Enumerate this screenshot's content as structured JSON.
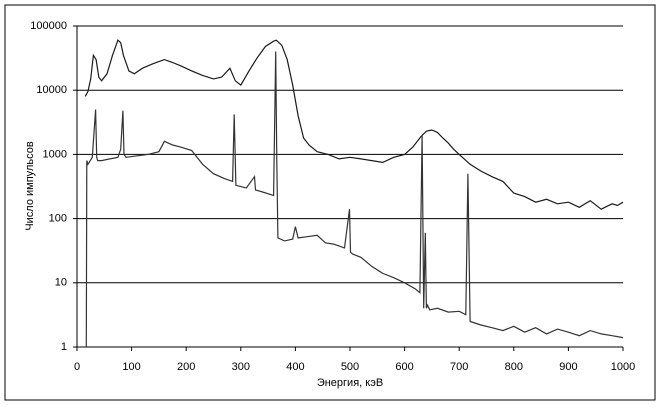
{
  "chart_data": {
    "type": "line",
    "y_label": "Число импульсов",
    "x_label": "Энергия, кэВ",
    "xlim": [
      0,
      1000
    ],
    "xticks": [
      0,
      100,
      200,
      300,
      400,
      500,
      600,
      700,
      800,
      900,
      1000
    ],
    "ylim": [
      1,
      100000
    ],
    "yticks": [
      1,
      10,
      100,
      1000,
      10000,
      100000
    ],
    "log_y": true,
    "grid": true,
    "series": [
      {
        "color": "#1a1a1a",
        "x": [
          15,
          20,
          25,
          30,
          35,
          40,
          45,
          55,
          65,
          75,
          80,
          85,
          95,
          105,
          120,
          140,
          160,
          175,
          190,
          210,
          230,
          250,
          265,
          280,
          290,
          300,
          315,
          330,
          345,
          360,
          365,
          375,
          385,
          395,
          405,
          415,
          425,
          440,
          460,
          480,
          500,
          520,
          540,
          560,
          580,
          600,
          615,
          630,
          640,
          650,
          660,
          670,
          680,
          690,
          700,
          720,
          740,
          760,
          780,
          800,
          820,
          840,
          860,
          880,
          900,
          920,
          940,
          960,
          980,
          990,
          1000
        ],
        "values": [
          8000,
          9500,
          15000,
          35000,
          30000,
          16000,
          14000,
          18000,
          35000,
          60000,
          55000,
          35000,
          20000,
          18000,
          22000,
          26000,
          30000,
          27000,
          24000,
          20000,
          17000,
          15000,
          16000,
          22000,
          14000,
          12000,
          20000,
          32000,
          48000,
          58000,
          60000,
          50000,
          30000,
          12000,
          4000,
          1800,
          1400,
          1100,
          1000,
          850,
          900,
          850,
          800,
          750,
          900,
          1000,
          1300,
          1900,
          2300,
          2400,
          2200,
          1800,
          1500,
          1200,
          1000,
          700,
          550,
          450,
          380,
          250,
          220,
          180,
          200,
          170,
          180,
          150,
          190,
          140,
          170,
          160,
          180
        ]
      },
      {
        "color": "#333333",
        "x": [
          17,
          18,
          20,
          28,
          34,
          36,
          38,
          45,
          60,
          75,
          80,
          84,
          86,
          90,
          110,
          130,
          150,
          160,
          175,
          190,
          210,
          230,
          250,
          270,
          285,
          288,
          291,
          310,
          325,
          327,
          340,
          360,
          364,
          366,
          368,
          380,
          395,
          400,
          405,
          420,
          440,
          455,
          470,
          490,
          499,
          501,
          505,
          520,
          540,
          560,
          580,
          600,
          620,
          628,
          632,
          635,
          638,
          640,
          642,
          646,
          660,
          680,
          700,
          712,
          716,
          720,
          740,
          760,
          780,
          800,
          820,
          840,
          860,
          880,
          900,
          920,
          940,
          960,
          980,
          1000
        ],
        "values": [
          1,
          800,
          700,
          900,
          5000,
          900,
          800,
          800,
          850,
          900,
          1200,
          4800,
          1000,
          900,
          950,
          1000,
          1100,
          1600,
          1400,
          1300,
          1150,
          700,
          500,
          420,
          380,
          4200,
          330,
          300,
          450,
          280,
          260,
          230,
          40000,
          800,
          50,
          45,
          48,
          75,
          50,
          52,
          55,
          42,
          40,
          35,
          140,
          30,
          28,
          25,
          18,
          14,
          12,
          10,
          8,
          7,
          2000,
          4,
          60,
          4,
          4.5,
          3.8,
          4,
          3.5,
          3.6,
          3.2,
          500,
          2.5,
          2.2,
          2,
          1.8,
          2.1,
          1.7,
          2,
          1.6,
          1.9,
          1.7,
          1.5,
          1.8,
          1.6,
          1.5,
          1.4
        ]
      }
    ]
  }
}
